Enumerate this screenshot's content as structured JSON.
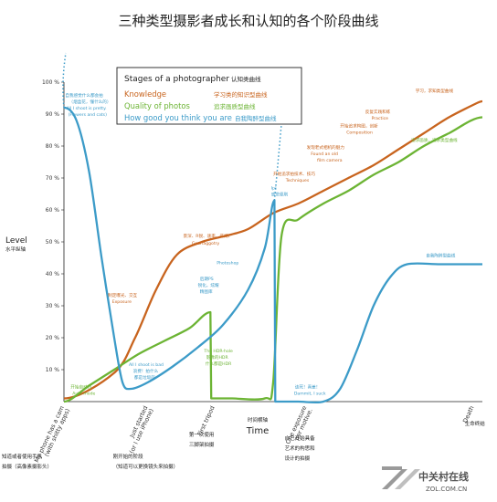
{
  "chart_data": {
    "type": "line",
    "title": "三种类型摄影者成长和认知的各个阶段曲线",
    "ylabel": "Level",
    "ylabel_cn": "水平纵轴",
    "xlabel": "Time",
    "xlabel_cn": "时间横轴",
    "ylim": [
      0,
      100
    ],
    "x_domain": [
      0,
      100
    ],
    "yticks": [
      "100 %",
      "90 %",
      "80 %",
      "70 %",
      "60 %",
      "50 %",
      "40 %",
      "30 %",
      "20 %",
      "10 %"
    ],
    "grid": false,
    "legend_position": "top-center",
    "legend": {
      "title": "Stages of a photographer",
      "title_cn": "认知类曲线",
      "entries": [
        {
          "label": "Knowledge",
          "label_cn": "学习类的知识型曲线",
          "color": "#c8641e"
        },
        {
          "label": "Quality of photos",
          "label_cn": "追求画质型曲线",
          "color": "#6cb434"
        },
        {
          "label": "How good you think you are",
          "label_cn": "自我陶醉型曲线",
          "color": "#3c9bc8"
        }
      ]
    },
    "categories": [
      {
        "label": "My phone has a cam",
        "sub": "(with shitty apps)",
        "cn": [
          "知道或者使用手机",
          "拍摄（高像素摄影头）"
        ]
      },
      {
        "label": "Just started",
        "sub": "(or I use iPhone)",
        "cn": [
          "刚开始的阶段",
          "（知道可以更换镜头来拍摄）"
        ]
      },
      {
        "label": "First tripod",
        "sub": "",
        "cn": [
          "第一次使用",
          "三脚架拍摄"
        ]
      },
      {
        "label": "One exposure",
        "sub": "per motive.",
        "cn": [
          "自己开始具备",
          "艺术的构思和",
          "设计的拍摄"
        ]
      },
      {
        "label": "Death",
        "sub": "",
        "cn": [
          "生命终结"
        ]
      }
    ],
    "series": [
      {
        "name": "Knowledge",
        "color": "#c8641e",
        "x": [
          0,
          12,
          17,
          22,
          27,
          33,
          39,
          44,
          50,
          56,
          62,
          68,
          74,
          80,
          86,
          92,
          98,
          100
        ],
        "y": [
          1,
          9,
          20,
          35,
          46,
          50,
          52,
          54,
          59,
          62,
          66,
          70,
          74,
          79,
          84,
          89,
          93,
          94
        ]
      },
      {
        "name": "Quality of photos",
        "color": "#6cb434",
        "x": [
          0,
          6,
          12,
          18,
          24,
          30,
          35,
          35.2,
          40,
          48,
          50,
          52,
          56,
          62,
          68,
          74,
          80,
          86,
          92,
          100
        ],
        "y": [
          0,
          5,
          10,
          15,
          19,
          23,
          28,
          1,
          1,
          1,
          6,
          52,
          57,
          62,
          66,
          71,
          75,
          80,
          84,
          89
        ]
      },
      {
        "name": "How good you think you are",
        "color": "#3c9bc8",
        "x": [
          0,
          3,
          6,
          9,
          12,
          14,
          16,
          20,
          26,
          32,
          38,
          44,
          48,
          50.3,
          50.5,
          56,
          62,
          66,
          70,
          74,
          78,
          82,
          90,
          100
        ],
        "y": [
          92,
          88,
          72,
          45,
          20,
          6,
          4,
          6,
          11,
          17,
          24,
          35,
          48,
          63,
          0,
          0,
          0,
          4,
          16,
          30,
          39,
          43,
          43,
          43
        ]
      }
    ],
    "annotations": [
      {
        "text": "自我感觉什么都会拍",
        "color": "#3c9bc8",
        "x": 0.3,
        "y": 95.5
      },
      {
        "text": "（烟盒花，懂什么的）",
        "color": "#3c9bc8",
        "x": 1.2,
        "y": 93.5
      },
      {
        "text": "All I shoot is pretty.",
        "color": "#3c9bc8",
        "x": 0.6,
        "y": 91.5
      },
      {
        "text": "(Flowers and cats)",
        "color": "#3c9bc8",
        "x": 1.0,
        "y": 89.5
      },
      {
        "text": "开始自动档",
        "color": "#6cb434",
        "x": 1.6,
        "y": 4.2
      },
      {
        "text": "Auto mode",
        "color": "#6cb434",
        "x": 2.0,
        "y": 2.2
      },
      {
        "text": "制定曝光、交互",
        "color": "#c8641e",
        "x": 10.5,
        "y": 32.8
      },
      {
        "text": "Exposure",
        "color": "#c8641e",
        "x": 11.5,
        "y": 30.8
      },
      {
        "text": "All I shoot is bad",
        "color": "#3c9bc8",
        "x": 15.5,
        "y": 11.2
      },
      {
        "text": "浪费！拍什么",
        "color": "#3c9bc8",
        "x": 16.5,
        "y": 9.2
      },
      {
        "text": "都是垃圾的",
        "color": "#3c9bc8",
        "x": 16.8,
        "y": 7.2
      },
      {
        "text": "后期PS",
        "color": "#3c9bc8",
        "x": 32.5,
        "y": 38.0
      },
      {
        "text": "锐化，炫耀",
        "color": "#3c9bc8",
        "x": 32.0,
        "y": 36.0
      },
      {
        "text": "精图库",
        "color": "#3c9bc8",
        "x": 32.5,
        "y": 34.0
      },
      {
        "text": "Photoshop",
        "color": "#3c9bc8",
        "x": 36.5,
        "y": 43.0
      },
      {
        "text": "景深、R锐、速率、开阔、",
        "color": "#c8641e",
        "x": 28.5,
        "y": 51.5
      },
      {
        "text": "Gearfaggotry",
        "color": "#c8641e",
        "x": 30.5,
        "y": 49.2
      },
      {
        "text": "The HDR-hole",
        "color": "#6cb434",
        "x": 33.5,
        "y": 15.4
      },
      {
        "text": "影像的HDR",
        "color": "#6cb434",
        "x": 34.0,
        "y": 13.4
      },
      {
        "text": "什么都是HDR",
        "color": "#6cb434",
        "x": 33.8,
        "y": 11.4
      },
      {
        "text": "Ip!",
        "color": "#3c9bc8",
        "x": 49.5,
        "y": 66.5
      },
      {
        "text": "感觉便刷",
        "color": "#3c9bc8",
        "x": 49.5,
        "y": 64.5
      },
      {
        "text": "Dammit, I suck",
        "color": "#3c9bc8",
        "x": 55.0,
        "y": 2.2
      },
      {
        "text": "该死！真差！",
        "color": "#3c9bc8",
        "x": 55.2,
        "y": 4.2
      },
      {
        "text": "开始追求拍技术、技巧",
        "color": "#c8641e",
        "x": 50.0,
        "y": 70.8
      },
      {
        "text": "Techniques",
        "color": "#c8641e",
        "x": 53.0,
        "y": 68.8
      },
      {
        "text": "发现老式相机的魅力",
        "color": "#c8641e",
        "x": 58.0,
        "y": 79.2
      },
      {
        "text": "Found an old",
        "color": "#c8641e",
        "x": 59.0,
        "y": 77.2
      },
      {
        "text": "film camera",
        "color": "#c8641e",
        "x": 60.5,
        "y": 75.2
      },
      {
        "text": "开始追求构图，创新",
        "color": "#c8641e",
        "x": 66.0,
        "y": 85.8
      },
      {
        "text": "Composition",
        "color": "#c8641e",
        "x": 67.5,
        "y": 83.8
      },
      {
        "text": "反复实践和练",
        "color": "#c8641e",
        "x": 72.0,
        "y": 90.3
      },
      {
        "text": "Practice",
        "color": "#c8641e",
        "x": 73.5,
        "y": 88.3
      },
      {
        "text": "学习，求知类型曲线",
        "color": "#c8641e",
        "x": 84.0,
        "y": 96.8
      },
      {
        "text": "追求画质，追求类型曲线",
        "color": "#6cb434",
        "x": 83.0,
        "y": 81.5
      },
      {
        "text": "自我陶醉型曲线",
        "color": "#3c9bc8",
        "x": 86.5,
        "y": 45.3
      }
    ]
  },
  "watermark": {
    "brand": "中关村在线",
    "url": "ZOL.COM.CN"
  }
}
